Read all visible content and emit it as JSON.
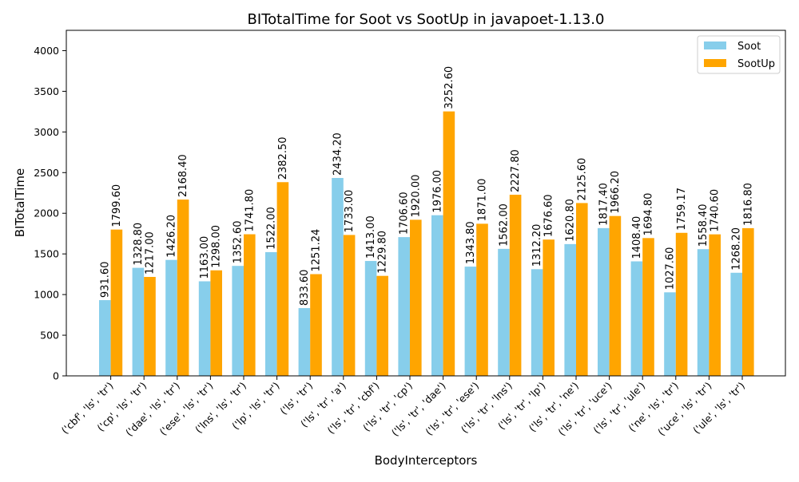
{
  "chart_data": {
    "type": "bar",
    "title": "BITotalTime for Soot vs SootUp in javapoet-1.13.0",
    "xlabel": "BodyInterceptors",
    "ylabel": "BITotalTime",
    "ylim": [
      0,
      4250
    ],
    "yticks": [
      0,
      500,
      1000,
      1500,
      2000,
      2500,
      3000,
      3500,
      4000
    ],
    "grid": false,
    "legend_position": "top-right",
    "categories": [
      "('cbf', 'ls', 'tr')",
      "('cp', 'ls', 'tr')",
      "('dae', 'ls', 'tr')",
      "('ese', 'ls', 'tr')",
      "('lns', 'ls', 'tr')",
      "('lp', 'ls', 'tr')",
      "('ls', 'tr')",
      "('ls', 'tr', 'a')",
      "('ls', 'tr', 'cbf')",
      "('ls', 'tr', 'cp')",
      "('ls', 'tr', 'dae')",
      "('ls', 'tr', 'ese')",
      "('ls', 'tr', 'lns')",
      "('ls', 'tr', 'lp')",
      "('ls', 'tr', 'ne')",
      "('ls', 'tr', 'uce')",
      "('ls', 'tr', 'ule')",
      "('ne', 'ls', 'tr')",
      "('uce', 'ls', 'tr')",
      "('ule', 'ls', 'tr')"
    ],
    "series": [
      {
        "name": "Soot",
        "color": "#87CEEB",
        "values": [
          931.6,
          1328.8,
          1426.2,
          1163.0,
          1352.6,
          1522.0,
          833.6,
          2434.2,
          1413.0,
          1706.6,
          1976.0,
          1343.8,
          1562.0,
          1312.2,
          1620.8,
          1817.4,
          1408.4,
          1027.6,
          1558.4,
          1268.2
        ],
        "labels": [
          "931.60",
          "1328.80",
          "1426.20",
          "1163.00",
          "1352.60",
          "1522.00",
          "833.60",
          "2434.20",
          "1413.00",
          "1706.60",
          "1976.00",
          "1343.80",
          "1562.00",
          "1312.20",
          "1620.80",
          "1817.40",
          "1408.40",
          "1027.60",
          "1558.40",
          "1268.20"
        ]
      },
      {
        "name": "SootUp",
        "color": "#FFA500",
        "values": [
          1799.6,
          1217.0,
          2168.4,
          1298.0,
          1741.8,
          2382.5,
          1251.24,
          1733.0,
          1229.8,
          1920.0,
          3252.6,
          1871.0,
          2227.8,
          1676.6,
          2125.6,
          1966.2,
          1694.8,
          1759.17,
          1740.6,
          1816.8
        ],
        "labels": [
          "1799.60",
          "1217.00",
          "2168.40",
          "1298.00",
          "1741.80",
          "2382.50",
          "1251.24",
          "1733.00",
          "1229.80",
          "1920.00",
          "3252.60",
          "1871.00",
          "2227.80",
          "1676.60",
          "2125.60",
          "1966.20",
          "1694.80",
          "1759.17",
          "1740.60",
          "1816.80"
        ]
      }
    ]
  }
}
